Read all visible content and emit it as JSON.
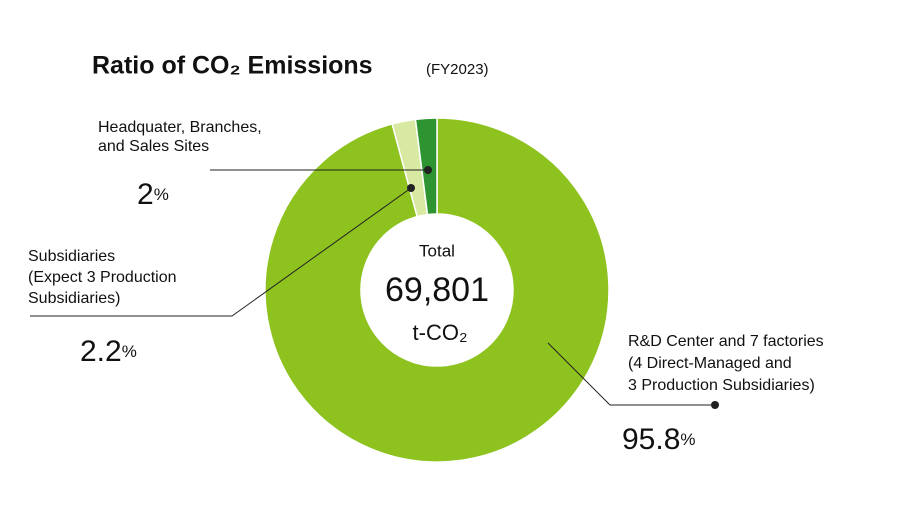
{
  "chart_data": {
    "type": "donut",
    "title": "Ratio of CO₂ Emissions",
    "subtitle": "(FY2023)",
    "total": {
      "label": "Total",
      "value": 69801,
      "value_label": "69,801",
      "unit": "t-CO₂"
    },
    "categories": [
      [
        "R&D Center and 7 factories",
        "(4 Direct-Managed and",
        "3 Production Subsidiaries)"
      ],
      [
        "Subsidiaries",
        "(Expect 3 Production",
        "Subsidiaries)"
      ],
      [
        "Headquater, Branches,",
        "and Sales Sites"
      ]
    ],
    "values": [
      95.8,
      2.2,
      2.0
    ],
    "unit": "%",
    "colors": [
      "#8dc21f",
      "#d8e9a1",
      "#2e9431"
    ]
  }
}
